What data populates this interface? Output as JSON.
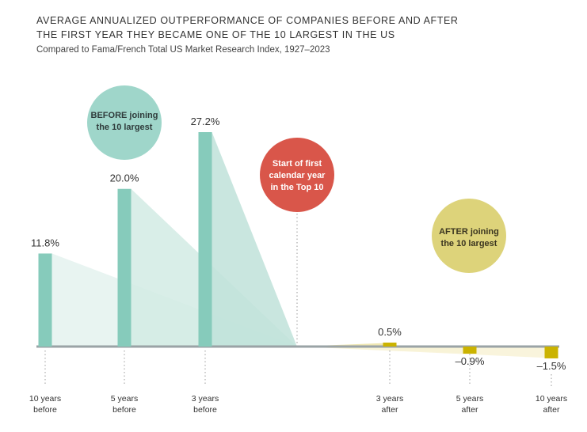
{
  "title_line1": "AVERAGE ANNUALIZED OUTPERFORMANCE OF COMPANIES BEFORE AND AFTER",
  "title_line2": "THE FIRST YEAR THEY BECAME ONE OF THE 10 LARGEST IN THE US",
  "subtitle": "Compared to Fama/French Total US Market Research Index, 1927–2023",
  "colors": {
    "before": "#86cbbb",
    "after": "#cbb300",
    "before_bubble": "#9fd6ca",
    "start_bubble": "#d9564a",
    "after_bubble": "#ddd37a",
    "baseline": "#9aa3a6",
    "marker": "#999999"
  },
  "bubbles": {
    "before": {
      "line1": "BEFORE joining",
      "line2": "the 10 largest"
    },
    "start": {
      "line1": "Start of first",
      "line2": "calendar year",
      "line3": "in the Top 10"
    },
    "after": {
      "line1": "AFTER joining",
      "line2": "the 10 largest"
    }
  },
  "chart_data": {
    "type": "bar",
    "title": "AVERAGE ANNUALIZED OUTPERFORMANCE OF COMPANIES BEFORE AND AFTER THE FIRST YEAR THEY BECAME ONE OF THE 10 LARGEST IN THE US",
    "subtitle": "Compared to Fama/French Total US Market Research Index, 1927–2023",
    "unit": "%",
    "ylim": [
      -1.5,
      27.2
    ],
    "bars": [
      {
        "period": "10 years before",
        "label_line1": "10 years",
        "label_line2": "before",
        "value": 11.8,
        "value_label": "11.8%",
        "group": "before"
      },
      {
        "period": "5 years before",
        "label_line1": "5 years",
        "label_line2": "before",
        "value": 20.0,
        "value_label": "20.0%",
        "group": "before"
      },
      {
        "period": "3 years before",
        "label_line1": "3 years",
        "label_line2": "before",
        "value": 27.2,
        "value_label": "27.2%",
        "group": "before"
      },
      {
        "period": "3 years after",
        "label_line1": "3 years",
        "label_line2": "after",
        "value": 0.5,
        "value_label": "0.5%",
        "group": "after"
      },
      {
        "period": "5 years after",
        "label_line1": "5 years",
        "label_line2": "after",
        "value": -0.9,
        "value_label": "–0.9%",
        "group": "after"
      },
      {
        "period": "10 years after",
        "label_line1": "10 years",
        "label_line2": "after",
        "value": -1.5,
        "value_label": "–1.5%",
        "group": "after"
      }
    ]
  }
}
